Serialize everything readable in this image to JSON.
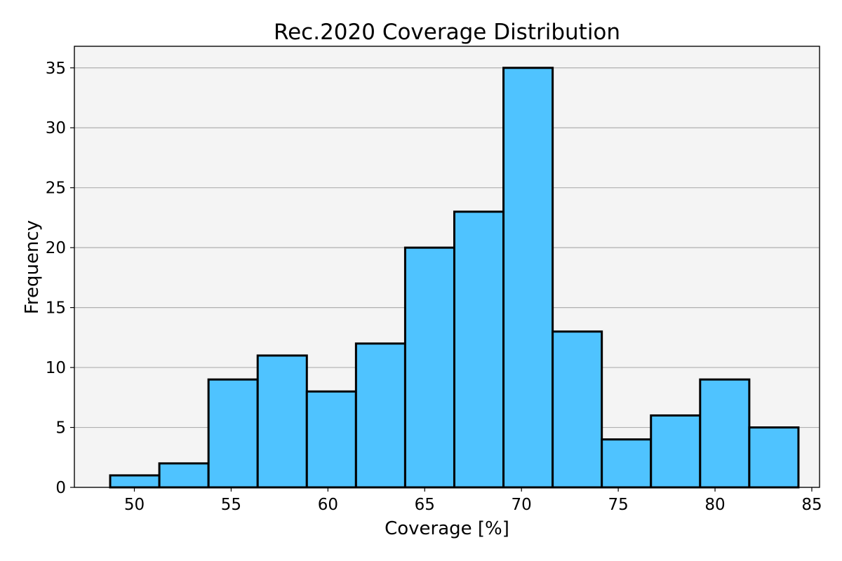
{
  "chart_data": {
    "type": "bar",
    "title": "Rec.2020 Coverage Distribution",
    "xlabel": "Coverage [%]",
    "ylabel": "Frequency",
    "bin_start": 48.75,
    "bin_width": 2.54,
    "values": [
      1,
      2,
      9,
      11,
      8,
      12,
      20,
      23,
      35,
      13,
      4,
      6,
      9,
      5
    ],
    "xlim": [
      46.9,
      85.4
    ],
    "ylim": [
      0,
      36.8
    ],
    "xticks": [
      50,
      55,
      60,
      65,
      70,
      75,
      80,
      85
    ],
    "yticks": [
      0,
      5,
      10,
      15,
      20,
      25,
      30,
      35
    ],
    "grid": "y",
    "colors": {
      "bar_fill": "#4fc3ff",
      "bar_edge": "#000000",
      "plot_background": "#f4f4f4",
      "grid": "#b0b0b0"
    }
  }
}
